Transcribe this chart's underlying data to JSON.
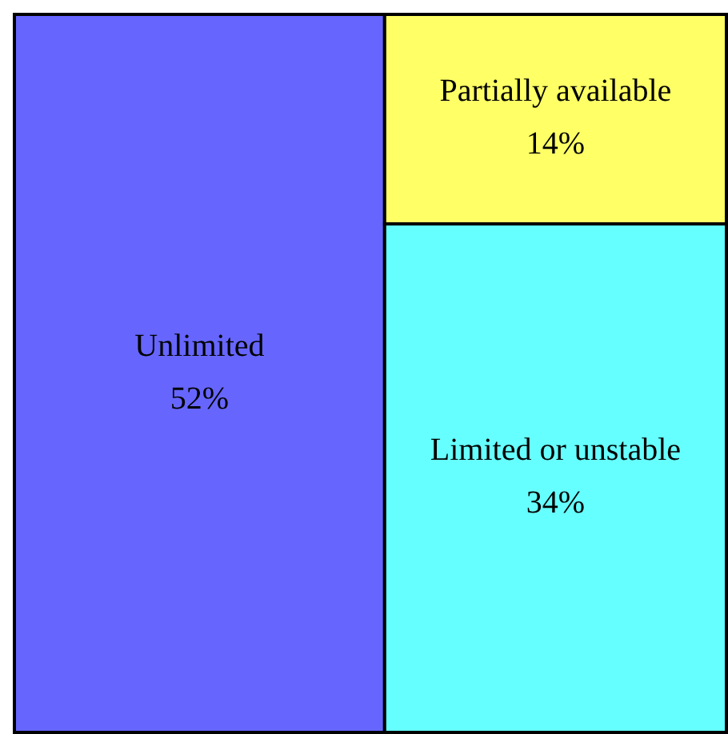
{
  "chart_data": {
    "type": "other",
    "categories": [
      "Unlimited",
      "Partially available",
      "Limited or unstable"
    ],
    "values": [
      52,
      14,
      34
    ],
    "value_labels": [
      "52%",
      "14%",
      "34%"
    ],
    "colors": [
      "#6666ff",
      "#ffff66",
      "#66ffff"
    ]
  }
}
